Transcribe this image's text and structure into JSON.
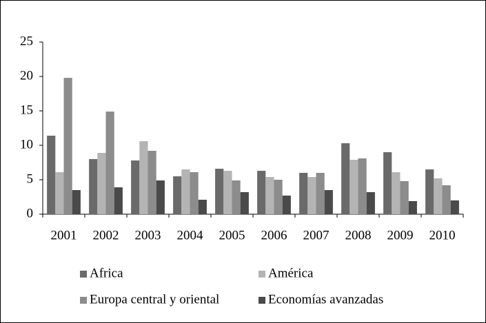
{
  "chart_data": {
    "type": "bar",
    "categories": [
      "2001",
      "2002",
      "2003",
      "2004",
      "2005",
      "2006",
      "2007",
      "2008",
      "2009",
      "2010"
    ],
    "series": [
      {
        "name": "Africa",
        "color": "#6a6a6a",
        "values": [
          11.4,
          8.0,
          7.8,
          5.5,
          6.6,
          6.3,
          6.0,
          10.3,
          9.0,
          6.5
        ]
      },
      {
        "name": "América",
        "color": "#b4b4b4",
        "values": [
          6.1,
          8.9,
          10.6,
          6.5,
          6.3,
          5.4,
          5.4,
          7.9,
          6.1,
          5.2
        ]
      },
      {
        "name": "Europa central y oriental",
        "color": "#8c8c8c",
        "values": [
          19.8,
          14.9,
          9.2,
          6.1,
          4.9,
          5.0,
          6.0,
          8.1,
          4.8,
          4.2
        ]
      },
      {
        "name": "Economías avanzadas",
        "color": "#4a4a4a",
        "values": [
          3.5,
          3.9,
          4.9,
          2.1,
          3.2,
          2.7,
          3.5,
          3.2,
          1.9,
          2.0
        ]
      }
    ],
    "ylim": [
      0,
      25
    ],
    "yticks": [
      0,
      5,
      10,
      15,
      20,
      25
    ],
    "grid": false,
    "legend": "bottom"
  }
}
